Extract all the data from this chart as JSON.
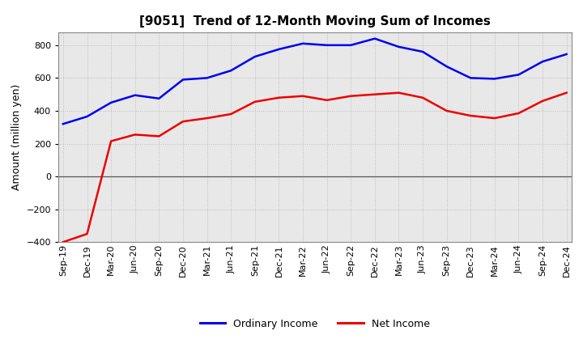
{
  "title": "[9051]  Trend of 12-Month Moving Sum of Incomes",
  "ylabel": "Amount (million yen)",
  "ylim": [
    -400,
    880
  ],
  "yticks": [
    -400,
    -200,
    0,
    200,
    400,
    600,
    800
  ],
  "plot_bg_color": "#e8e8e8",
  "fig_bg_color": "#ffffff",
  "grid_color": "#bbbbbb",
  "x_labels": [
    "Sep-19",
    "Dec-19",
    "Mar-20",
    "Jun-20",
    "Sep-20",
    "Dec-20",
    "Mar-21",
    "Jun-21",
    "Sep-21",
    "Dec-21",
    "Mar-22",
    "Jun-22",
    "Sep-22",
    "Dec-22",
    "Mar-23",
    "Jun-23",
    "Sep-23",
    "Dec-23",
    "Mar-24",
    "Jun-24",
    "Sep-24",
    "Dec-24"
  ],
  "ordinary_income": [
    320,
    365,
    450,
    495,
    475,
    590,
    600,
    645,
    730,
    775,
    810,
    800,
    800,
    840,
    790,
    760,
    670,
    600,
    595,
    620,
    700,
    745
  ],
  "net_income": [
    -400,
    -350,
    215,
    255,
    245,
    335,
    355,
    380,
    455,
    480,
    490,
    465,
    490,
    500,
    510,
    480,
    400,
    370,
    355,
    385,
    460,
    510
  ],
  "ordinary_color": "#0000ee",
  "net_color": "#ee0000",
  "line_width": 1.8,
  "legend_labels": [
    "Ordinary Income",
    "Net Income"
  ],
  "title_fontsize": 11,
  "ylabel_fontsize": 9,
  "tick_fontsize": 8,
  "legend_fontsize": 9
}
